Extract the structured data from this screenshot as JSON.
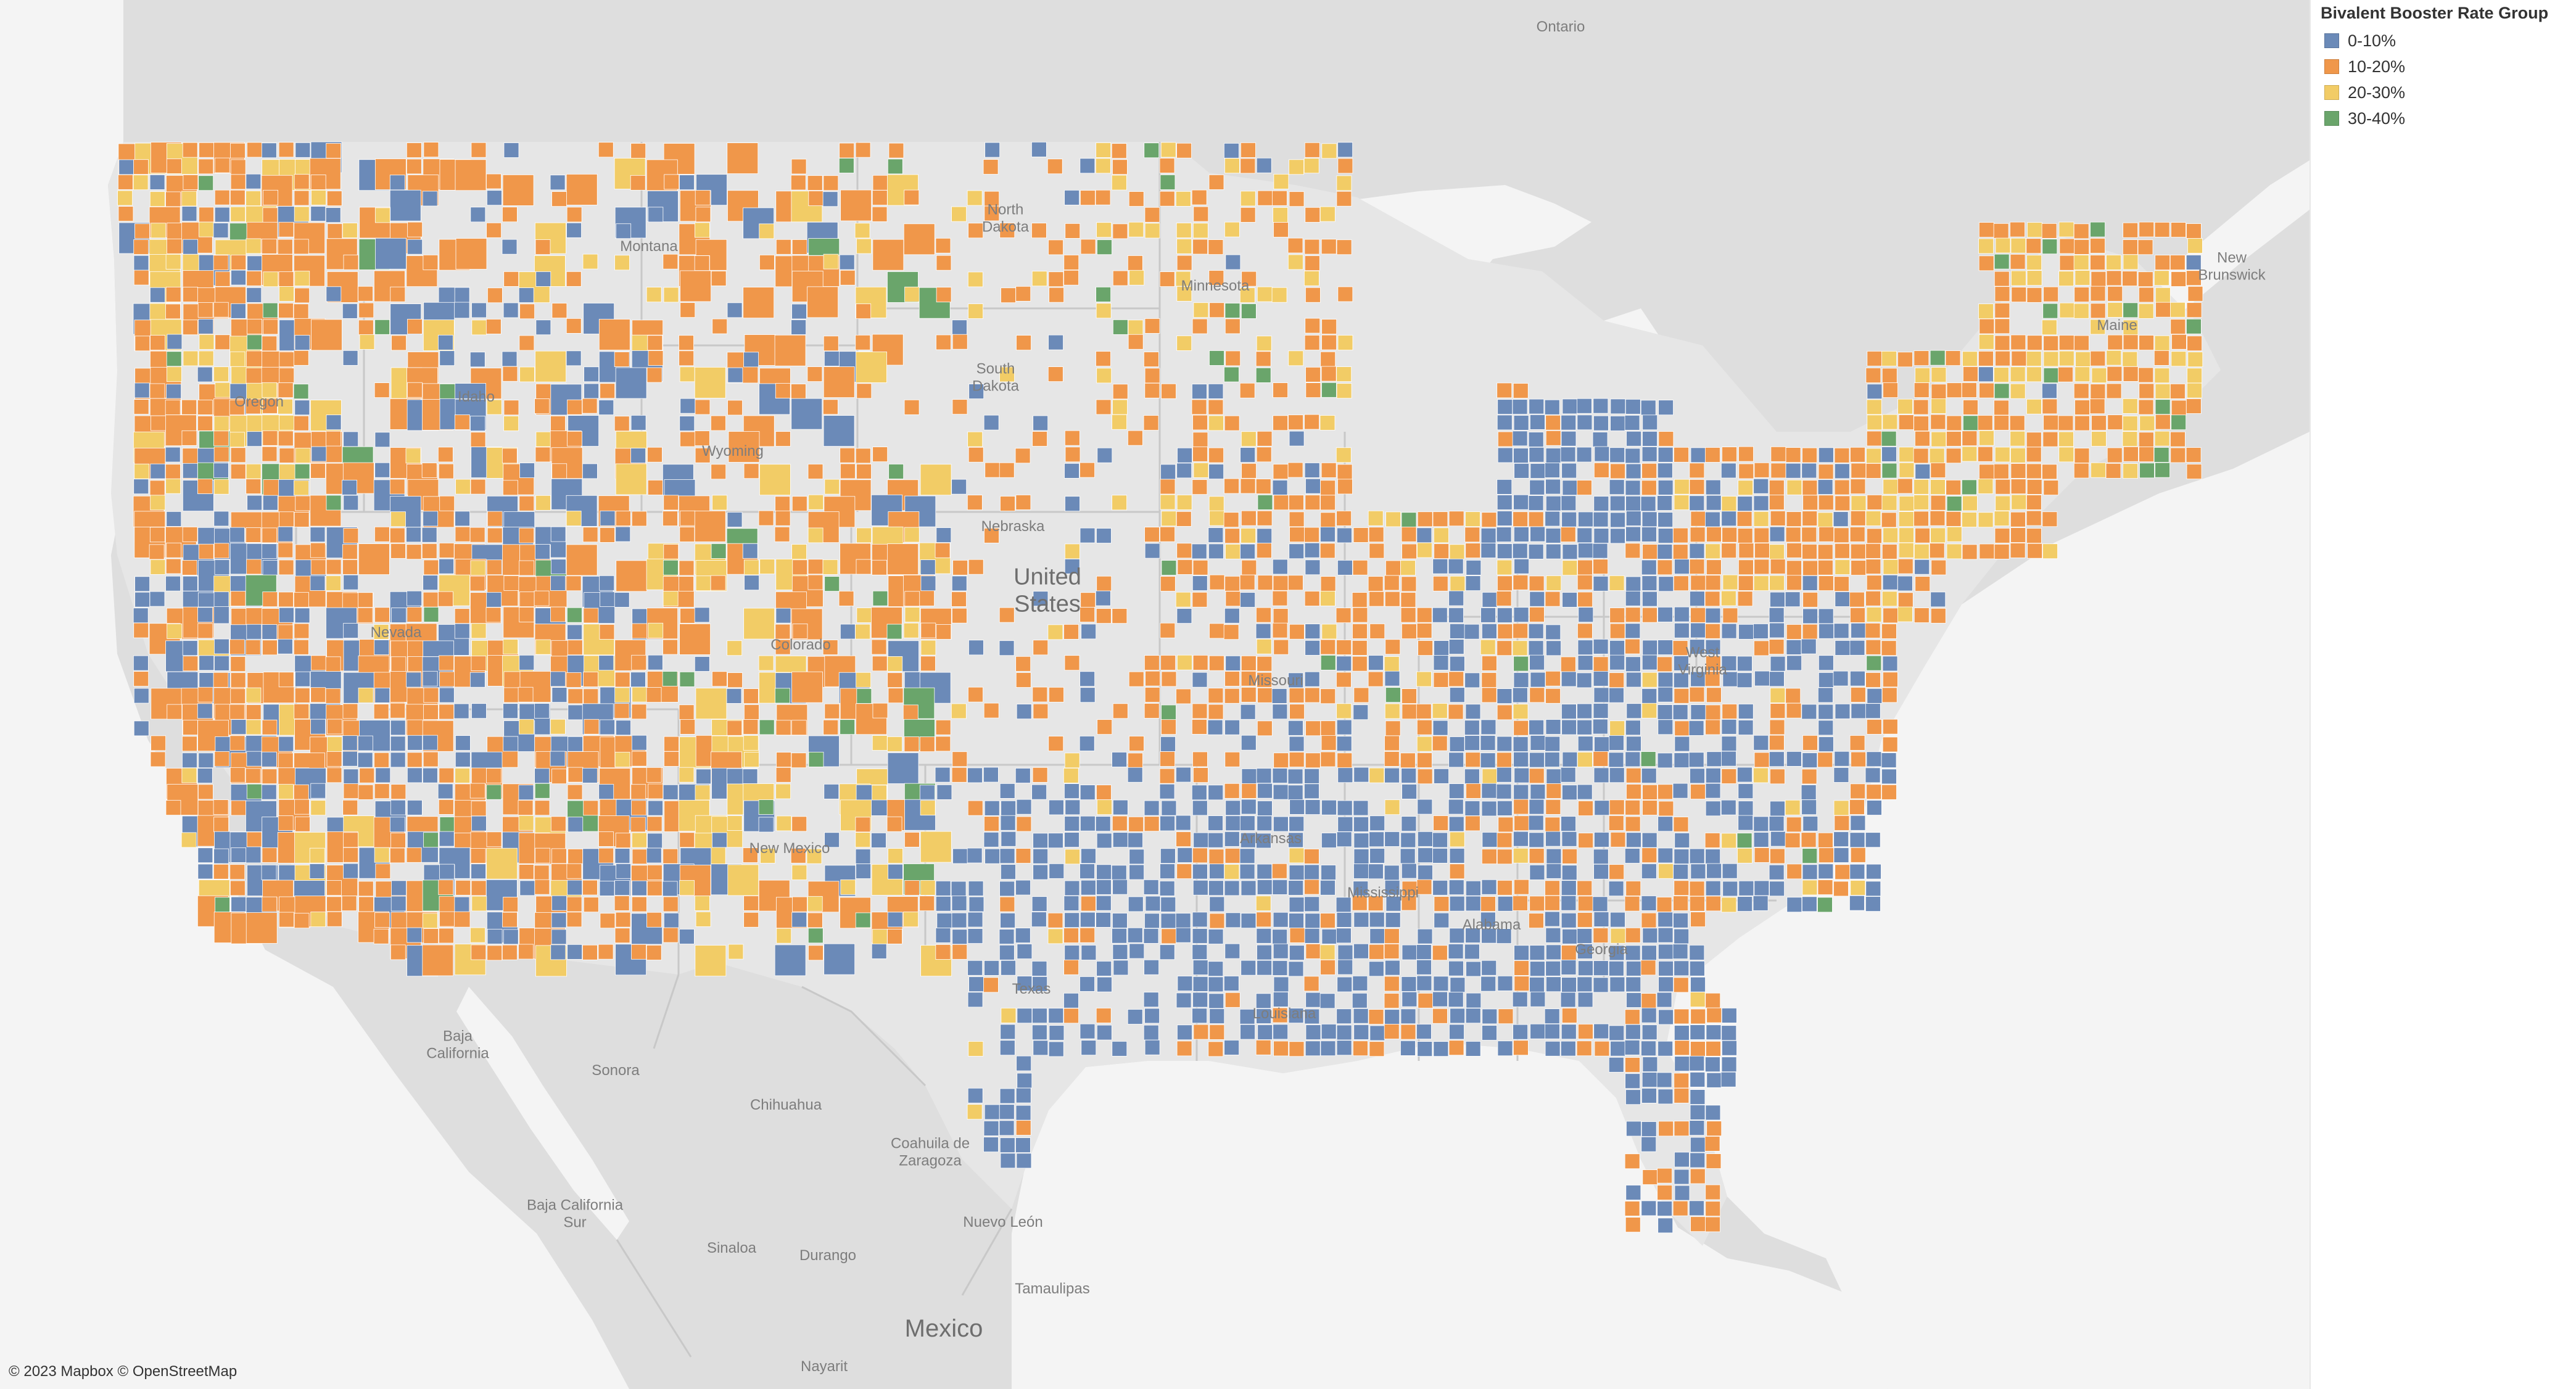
{
  "legend": {
    "title": "Bivalent Booster Rate Group",
    "items": [
      {
        "label": "0-10%",
        "color": "#6b8ab8"
      },
      {
        "label": "10-20%",
        "color": "#f0974a"
      },
      {
        "label": "20-30%",
        "color": "#f2cc66"
      },
      {
        "label": "30-40%",
        "color": "#6aa56b"
      }
    ]
  },
  "map": {
    "colors": {
      "land": "#dedede",
      "us_land": "#e6e6e6",
      "water": "#f4f4f4",
      "border": "#c8c8c8"
    },
    "labels": {
      "ontario": "Ontario",
      "new_brunswick": "New\nBrunswick",
      "north_dakota": "North\nDakota",
      "montana": "Montana",
      "minnesota": "Minnesota",
      "south_dakota": "South\nDakota",
      "idaho": "Idaho",
      "oregon": "Oregon",
      "wyoming": "Wyoming",
      "nebraska": "Nebraska",
      "united_states": "United\nStates",
      "nevada": "Nevada",
      "colorado": "Colorado",
      "missouri": "Missouri",
      "west_virginia": "West\nVirginia",
      "maine": "Maine",
      "arkansas": "Arkansas",
      "mississippi": "Mississippi",
      "alabama": "Alabama",
      "georgia": "Georgia",
      "new_mexico": "New Mexico",
      "texas": "Texas",
      "louisiana": "Louisiana",
      "baja_california": "Baja\nCalifornia",
      "sonora": "Sonora",
      "chihuahua": "Chihuahua",
      "coahuila": "Coahuila de\nZaragoza",
      "baja_california_sur": "Baja California\nSur",
      "nuevo_leon": "Nuevo León",
      "sinaloa": "Sinaloa",
      "durango": "Durango",
      "tamaulipas": "Tamaulipas",
      "mexico": "Mexico",
      "nayarit": "Nayarit"
    }
  },
  "attribution": "© 2023 Mapbox © OpenStreetMap"
}
